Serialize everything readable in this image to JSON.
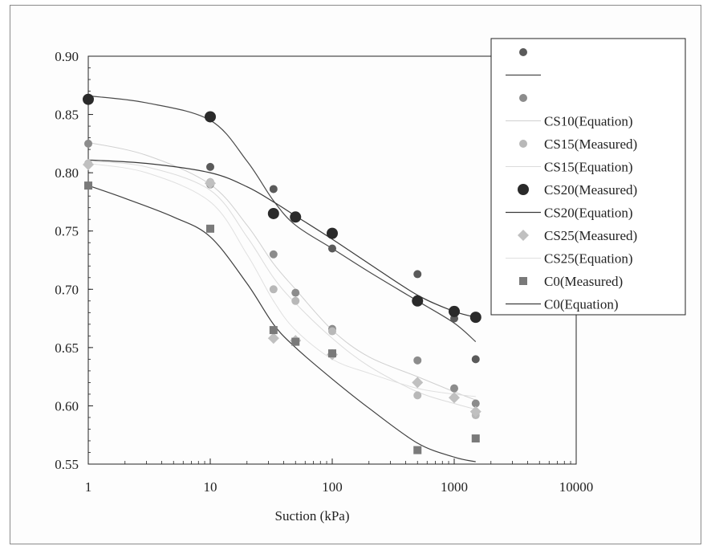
{
  "chart_data": {
    "type": "scatter",
    "xlabel": "Suction  (kPa)",
    "ylabel": "",
    "xscale": "log",
    "xlim": [
      1,
      10000
    ],
    "ylim": [
      0.55,
      0.9
    ],
    "x_ticks": [
      "1",
      "10",
      "100",
      "1000",
      "10000"
    ],
    "y_ticks": [
      "0.90",
      "0.85",
      "0.80",
      "0.75",
      "0.70",
      "0.65",
      "0.60",
      "0.55"
    ],
    "grid": false,
    "legend_position": "top-right",
    "series": [
      {
        "name": "",
        "kind": "points",
        "marker": "circle",
        "color": "#5a5a5a",
        "size": 5,
        "x": [
          1,
          10,
          33,
          50,
          100,
          500,
          1000,
          1500
        ],
        "y": [
          0.863,
          0.805,
          0.786,
          0.762,
          0.735,
          0.713,
          0.675,
          0.64
        ]
      },
      {
        "name": "",
        "kind": "line",
        "color": "#4a4a4a",
        "width": 1.2,
        "x": [
          1,
          3,
          10,
          20,
          33,
          50,
          100,
          200,
          500,
          1000,
          1500
        ],
        "y": [
          0.866,
          0.86,
          0.845,
          0.81,
          0.776,
          0.755,
          0.735,
          0.715,
          0.69,
          0.671,
          0.655
        ]
      },
      {
        "name": "",
        "kind": "points",
        "marker": "circle",
        "color": "#8c8c8c",
        "size": 5,
        "x": [
          1,
          10,
          33,
          50,
          100,
          500,
          1000,
          1500
        ],
        "y": [
          0.825,
          0.79,
          0.73,
          0.697,
          0.666,
          0.639,
          0.615,
          0.602
        ]
      },
      {
        "name": "CS10(Equation)",
        "kind": "line",
        "color": "#d0d0d0",
        "width": 1,
        "x": [
          1,
          3,
          10,
          20,
          33,
          50,
          100,
          200,
          500,
          1000,
          1500
        ],
        "y": [
          0.826,
          0.815,
          0.79,
          0.755,
          0.722,
          0.7,
          0.665,
          0.642,
          0.625,
          0.612,
          0.605
        ]
      },
      {
        "name": "CS15(Measured)",
        "kind": "points",
        "marker": "circle",
        "color": "#b8b8b8",
        "size": 5,
        "x": [
          1,
          10,
          33,
          50,
          100,
          500,
          1000,
          1500
        ],
        "y": [
          0.808,
          0.792,
          0.7,
          0.69,
          0.664,
          0.609,
          0.607,
          0.592
        ]
      },
      {
        "name": "CS15(Equation)",
        "kind": "line",
        "color": "#dcdcdc",
        "width": 1,
        "x": [
          1,
          3,
          10,
          20,
          33,
          50,
          100,
          200,
          500,
          1000,
          1500
        ],
        "y": [
          0.81,
          0.805,
          0.785,
          0.745,
          0.71,
          0.688,
          0.658,
          0.634,
          0.612,
          0.602,
          0.597
        ]
      },
      {
        "name": "CS20(Measured)",
        "kind": "points",
        "marker": "circle",
        "color": "#2a2a2a",
        "size": 7,
        "x": [
          1,
          10,
          33,
          50,
          100,
          500,
          1000,
          1500
        ],
        "y": [
          0.863,
          0.848,
          0.765,
          0.762,
          0.748,
          0.69,
          0.681,
          0.676
        ]
      },
      {
        "name": "CS20(Equation)",
        "kind": "line",
        "color": "#3a3a3a",
        "width": 1.2,
        "x": [
          1,
          3,
          10,
          20,
          33,
          50,
          100,
          200,
          500,
          1000,
          1500
        ],
        "y": [
          0.811,
          0.808,
          0.8,
          0.788,
          0.775,
          0.763,
          0.743,
          0.722,
          0.695,
          0.681,
          0.676
        ]
      },
      {
        "name": "CS25(Measured)",
        "kind": "points",
        "marker": "diamond",
        "color": "#c0c0c0",
        "size": 6,
        "x": [
          1,
          10,
          33,
          50,
          100,
          500,
          1000,
          1500
        ],
        "y": [
          0.807,
          0.791,
          0.658,
          0.656,
          0.644,
          0.62,
          0.607,
          0.595
        ]
      },
      {
        "name": "CS25(Equation)",
        "kind": "line",
        "color": "#e0e0e0",
        "width": 1,
        "x": [
          1,
          3,
          10,
          20,
          33,
          50,
          100,
          200,
          500,
          1000,
          1500
        ],
        "y": [
          0.808,
          0.8,
          0.775,
          0.73,
          0.69,
          0.665,
          0.64,
          0.628,
          0.615,
          0.61,
          0.608
        ]
      },
      {
        "name": "C0(Measured)",
        "kind": "points",
        "marker": "square",
        "color": "#7a7a7a",
        "size": 5,
        "x": [
          1,
          10,
          33,
          50,
          100,
          500,
          1500
        ],
        "y": [
          0.789,
          0.752,
          0.665,
          0.655,
          0.645,
          0.562,
          0.572
        ]
      },
      {
        "name": "C0(Equation)",
        "kind": "line",
        "color": "#3f3f3f",
        "width": 1.2,
        "x": [
          1,
          2,
          5,
          10,
          20,
          33,
          50,
          100,
          200,
          500,
          1000,
          1500
        ],
        "y": [
          0.789,
          0.778,
          0.762,
          0.745,
          0.705,
          0.67,
          0.65,
          0.623,
          0.598,
          0.568,
          0.556,
          0.552
        ]
      }
    ]
  }
}
